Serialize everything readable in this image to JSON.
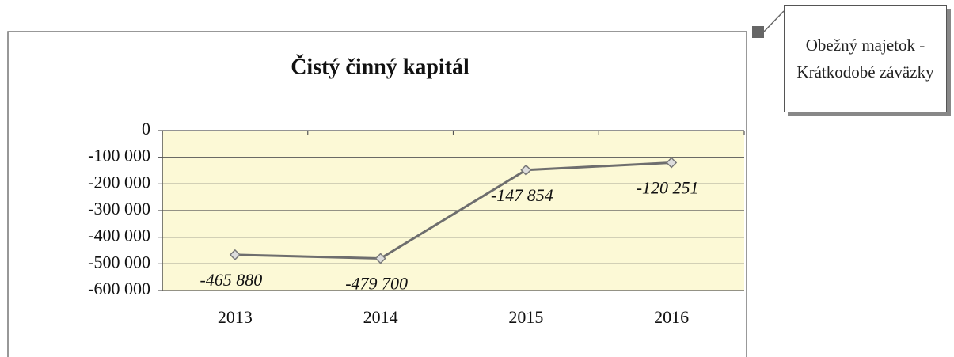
{
  "chart_data": {
    "type": "line",
    "title": "Čistý činný kapitál",
    "categories": [
      "2013",
      "2014",
      "2015",
      "2016"
    ],
    "series": [
      {
        "name": "Obežný majetok - Krátkodobé záväzky",
        "color": "#6e6e6e",
        "values": [
          -465880,
          -479700,
          -147854,
          -120251
        ],
        "value_labels": [
          "-465 880",
          "-479 700",
          "-147 854",
          "-120 251"
        ]
      }
    ],
    "ylim": [
      -600000,
      0
    ],
    "yticks": [
      0,
      {
        "value": -100000,
        "label": "-100 000"
      },
      {
        "value": -200000,
        "label": "-200 000"
      },
      {
        "value": -300000,
        "label": "-300 000"
      },
      {
        "value": -400000,
        "label": "-400 000"
      },
      {
        "value": -500000,
        "label": "-500 000"
      },
      {
        "value": -600000,
        "label": "-600 000"
      }
    ],
    "grid": true,
    "legend": "top-right"
  }
}
